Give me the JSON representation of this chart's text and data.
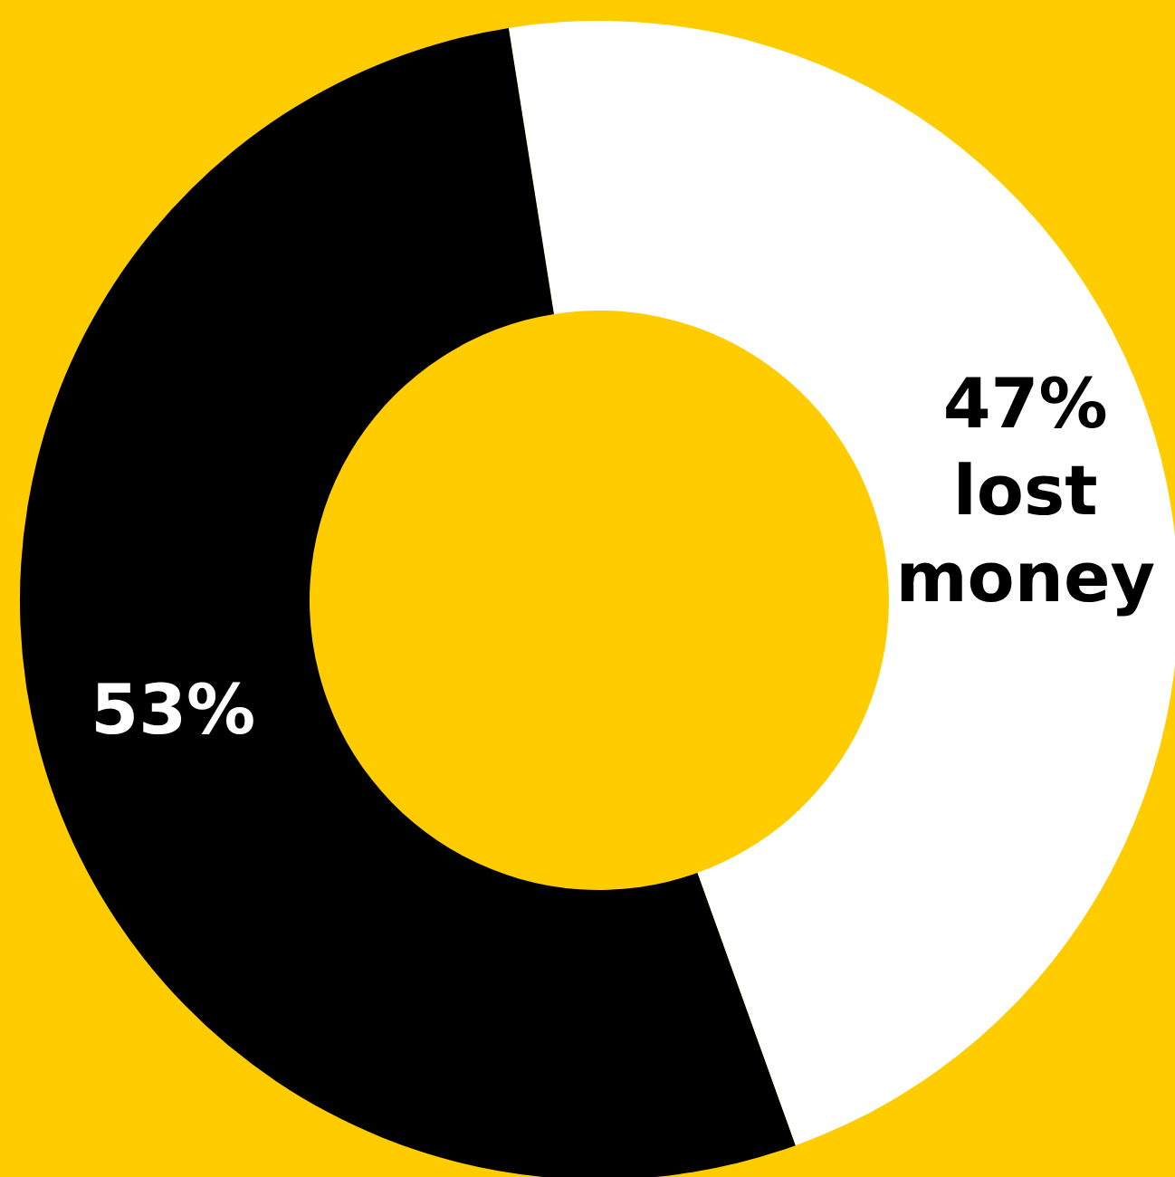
{
  "chart_data": {
    "type": "donut",
    "categories": [
      "lost money",
      null
    ],
    "values": [
      47,
      53
    ],
    "colors": [
      "#ffffff",
      "#000000"
    ],
    "value_labels": [
      "47%",
      "53%"
    ],
    "legend": false
  }
}
